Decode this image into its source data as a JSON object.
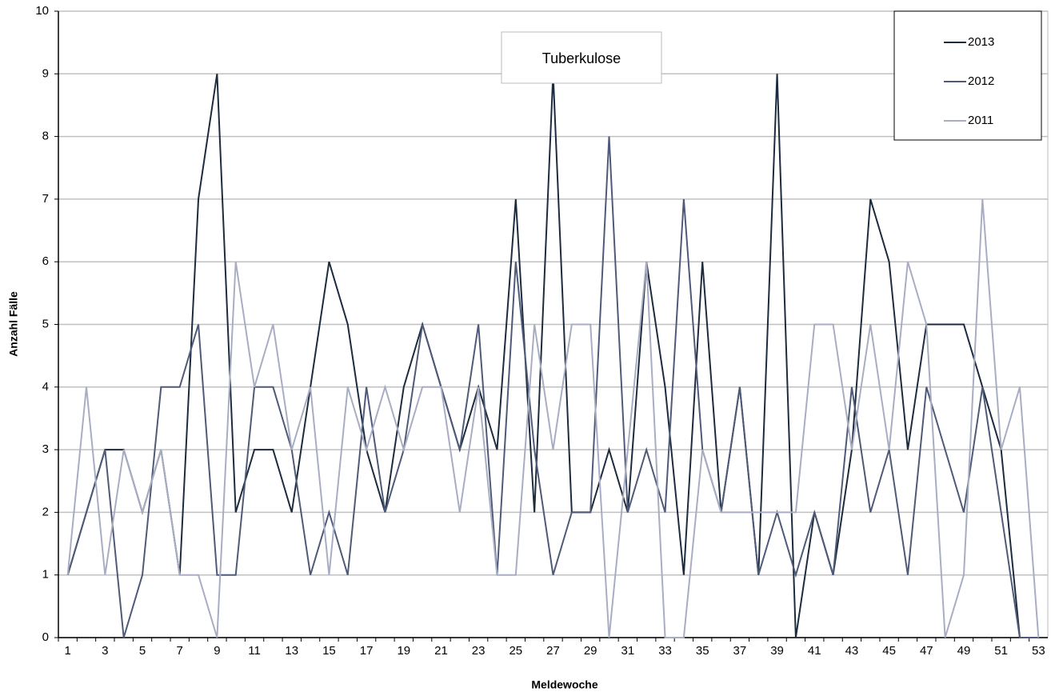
{
  "chart_data": {
    "type": "line",
    "title": "Tuberkulose",
    "x_label": "Meldewoche",
    "y_label": "Anzahl Fälle",
    "categories": [
      "1",
      null,
      "3",
      null,
      "5",
      null,
      "7",
      null,
      "9",
      null,
      "11",
      null,
      "13",
      null,
      "15",
      null,
      "17",
      null,
      "19",
      null,
      "21",
      null,
      "23",
      null,
      "25",
      null,
      "27",
      null,
      "29",
      null,
      "31",
      null,
      "33",
      null,
      "35",
      null,
      "37",
      null,
      "39",
      null,
      "41",
      null,
      "43",
      null,
      "45",
      null,
      "47",
      null,
      "49",
      null,
      "51",
      null,
      "53"
    ],
    "series": [
      {
        "name": "2013",
        "color": "#1c2b3e",
        "values": [
          1,
          2,
          3,
          3,
          2,
          3,
          1,
          7,
          9,
          2,
          3,
          3,
          2,
          4,
          6,
          5,
          3,
          2,
          4,
          5,
          4,
          3,
          4,
          3,
          7,
          2,
          9,
          2,
          2,
          3,
          2,
          6,
          4,
          1,
          6,
          2,
          4,
          1,
          9,
          0,
          2,
          1,
          3,
          7,
          6,
          3,
          5,
          5,
          5,
          4,
          3,
          0,
          0
        ]
      },
      {
        "name": "2012",
        "color": "#4e5a78",
        "values": [
          1,
          2,
          3,
          0,
          1,
          4,
          4,
          5,
          1,
          1,
          4,
          4,
          3,
          1,
          2,
          1,
          4,
          2,
          3,
          5,
          4,
          3,
          5,
          1,
          6,
          3,
          1,
          2,
          2,
          8,
          2,
          3,
          2,
          7,
          3,
          2,
          4,
          1,
          2,
          1,
          2,
          1,
          4,
          2,
          3,
          1,
          4,
          3,
          2,
          4,
          2,
          0,
          0
        ]
      },
      {
        "name": "2011",
        "color": "#a9adc3",
        "values": [
          1,
          4,
          1,
          3,
          2,
          3,
          1,
          1,
          0,
          6,
          4,
          5,
          3,
          4,
          1,
          4,
          3,
          4,
          3,
          4,
          4,
          2,
          4,
          1,
          1,
          5,
          3,
          5,
          5,
          0,
          3,
          6,
          0,
          0,
          3,
          2,
          2,
          2,
          2,
          2,
          5,
          5,
          3,
          5,
          3,
          6,
          5,
          0,
          1,
          7,
          3,
          4,
          0
        ]
      }
    ],
    "ylim": [
      0,
      10
    ],
    "yticks": [
      0,
      1,
      2,
      3,
      4,
      5,
      6,
      7,
      8,
      9,
      10
    ],
    "grid": true,
    "legend": "top-right"
  }
}
